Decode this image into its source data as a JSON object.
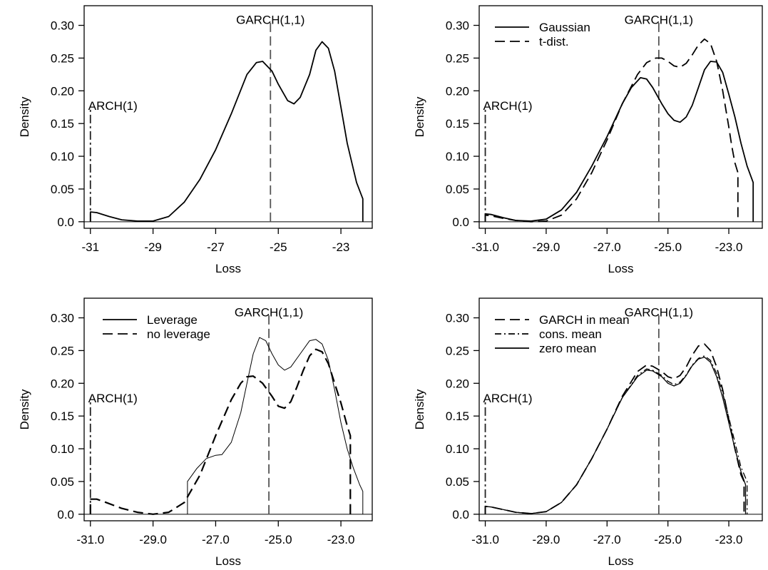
{
  "chart_data": [
    {
      "type": "line",
      "xlabel": "Loss",
      "ylabel": "Density",
      "xlim": [
        -31.2,
        -22.0
      ],
      "ylim": [
        -0.01,
        0.33
      ],
      "xticks": [
        -31,
        -29,
        -27,
        -25,
        -23
      ],
      "xtick_labels": [
        "-31",
        "-29",
        "-27",
        "-25",
        "-23"
      ],
      "yticks": [
        0.0,
        0.05,
        0.1,
        0.15,
        0.2,
        0.25,
        0.3
      ],
      "ytick_labels": [
        "0.0",
        "0.05",
        "0.10",
        "0.15",
        "0.20",
        "0.25",
        "0.30"
      ],
      "vlines": [
        {
          "label": "ARCH(1)",
          "x": -31.0,
          "ymax": 0.175
        },
        {
          "label": "GARCH(1,1)",
          "x": -25.25,
          "ymax": 0.31
        }
      ],
      "legend": [],
      "series": [
        {
          "style": "solid",
          "width": 1.8,
          "x": [
            -31.0,
            -31.0,
            -30.8,
            -30.4,
            -30.0,
            -29.5,
            -29.0,
            -28.5,
            -28.0,
            -27.5,
            -27.0,
            -26.5,
            -26.0,
            -25.7,
            -25.5,
            -25.2,
            -25.0,
            -24.7,
            -24.5,
            -24.3,
            -24.0,
            -23.8,
            -23.6,
            -23.4,
            -23.2,
            -23.0,
            -22.8,
            -22.5,
            -22.3,
            -22.3
          ],
          "y": [
            0.0,
            0.015,
            0.014,
            0.008,
            0.003,
            0.001,
            0.001,
            0.008,
            0.03,
            0.065,
            0.11,
            0.165,
            0.225,
            0.243,
            0.245,
            0.23,
            0.21,
            0.185,
            0.18,
            0.19,
            0.225,
            0.262,
            0.275,
            0.265,
            0.23,
            0.175,
            0.12,
            0.06,
            0.035,
            0.0
          ]
        }
      ]
    },
    {
      "type": "line",
      "xlabel": "Loss",
      "ylabel": "Density",
      "xlim": [
        -31.2,
        -21.9
      ],
      "ylim": [
        -0.01,
        0.33
      ],
      "xticks": [
        -31,
        -29,
        -27,
        -25,
        -23
      ],
      "xtick_labels": [
        "-31.0",
        "-29.0",
        "-27.0",
        "-25.0",
        "-23.0"
      ],
      "yticks": [
        0.0,
        0.05,
        0.1,
        0.15,
        0.2,
        0.25,
        0.3
      ],
      "ytick_labels": [
        "0.0",
        "0.05",
        "0.10",
        "0.15",
        "0.20",
        "0.25",
        "0.30"
      ],
      "vlines": [
        {
          "label": "ARCH(1)",
          "x": -31.0,
          "ymax": 0.175
        },
        {
          "label": "GARCH(1,1)",
          "x": -25.3,
          "ymax": 0.31
        }
      ],
      "legend": [
        {
          "label": "Gaussian",
          "style": "solid"
        },
        {
          "label": "t-dist.",
          "style": "dashed"
        }
      ],
      "series": [
        {
          "name": "Gaussian",
          "style": "solid",
          "width": 1.8,
          "x": [
            -31.0,
            -31.0,
            -30.8,
            -30.4,
            -30.0,
            -29.5,
            -29.0,
            -28.5,
            -28.0,
            -27.5,
            -27.0,
            -26.5,
            -26.2,
            -25.9,
            -25.7,
            -25.5,
            -25.2,
            -25.0,
            -24.8,
            -24.6,
            -24.4,
            -24.2,
            -24.0,
            -23.8,
            -23.6,
            -23.4,
            -23.2,
            -23.0,
            -22.8,
            -22.6,
            -22.4,
            -22.2,
            -22.2
          ],
          "y": [
            0.0,
            0.012,
            0.011,
            0.006,
            0.002,
            0.001,
            0.004,
            0.018,
            0.045,
            0.085,
            0.13,
            0.18,
            0.205,
            0.22,
            0.218,
            0.205,
            0.18,
            0.165,
            0.155,
            0.152,
            0.16,
            0.178,
            0.205,
            0.232,
            0.245,
            0.244,
            0.228,
            0.195,
            0.16,
            0.12,
            0.085,
            0.06,
            0.0
          ]
        },
        {
          "name": "t-dist.",
          "style": "dashed",
          "width": 1.8,
          "x": [
            -31.0,
            -31.0,
            -30.8,
            -30.4,
            -30.0,
            -29.5,
            -29.0,
            -28.5,
            -28.0,
            -27.5,
            -27.0,
            -26.5,
            -26.0,
            -25.7,
            -25.4,
            -25.2,
            -25.0,
            -24.8,
            -24.6,
            -24.4,
            -24.2,
            -24.0,
            -23.8,
            -23.6,
            -23.4,
            -23.2,
            -23.0,
            -22.9,
            -22.8,
            -22.7,
            -22.7
          ],
          "y": [
            0.0,
            0.01,
            0.009,
            0.005,
            0.002,
            0.0,
            0.001,
            0.01,
            0.035,
            0.075,
            0.125,
            0.18,
            0.225,
            0.243,
            0.25,
            0.25,
            0.245,
            0.238,
            0.236,
            0.242,
            0.255,
            0.27,
            0.279,
            0.272,
            0.245,
            0.2,
            0.145,
            0.115,
            0.09,
            0.075,
            0.0
          ]
        }
      ]
    },
    {
      "type": "line",
      "xlabel": "Loss",
      "ylabel": "Density",
      "xlim": [
        -31.2,
        -22.0
      ],
      "ylim": [
        -0.01,
        0.33
      ],
      "xticks": [
        -31,
        -29,
        -27,
        -25,
        -23
      ],
      "xtick_labels": [
        "-31.0",
        "-29.0",
        "-27.0",
        "-25.0",
        "-23.0"
      ],
      "yticks": [
        0.0,
        0.05,
        0.1,
        0.15,
        0.2,
        0.25,
        0.3
      ],
      "ytick_labels": [
        "0.0",
        "0.05",
        "0.10",
        "0.15",
        "0.20",
        "0.25",
        "0.30"
      ],
      "vlines": [
        {
          "label": "ARCH(1)",
          "x": -31.0,
          "ymax": 0.175
        },
        {
          "label": "GARCH(1,1)",
          "x": -25.3,
          "ymax": 0.31
        }
      ],
      "legend": [
        {
          "label": "Leverage",
          "style": "solid"
        },
        {
          "label": "no leverage",
          "style": "dashed"
        }
      ],
      "series": [
        {
          "name": "Leverage",
          "style": "solid",
          "width": 1.0,
          "x": [
            -27.9,
            -27.9,
            -27.6,
            -27.3,
            -27.0,
            -26.8,
            -26.5,
            -26.2,
            -26.0,
            -25.8,
            -25.6,
            -25.4,
            -25.2,
            -25.0,
            -24.8,
            -24.6,
            -24.3,
            -24.0,
            -23.8,
            -23.6,
            -23.4,
            -23.2,
            -23.0,
            -22.8,
            -22.6,
            -22.4,
            -22.3,
            -22.3
          ],
          "y": [
            0.0,
            0.05,
            0.07,
            0.085,
            0.09,
            0.091,
            0.11,
            0.155,
            0.2,
            0.245,
            0.27,
            0.265,
            0.245,
            0.228,
            0.22,
            0.225,
            0.245,
            0.265,
            0.267,
            0.26,
            0.235,
            0.19,
            0.14,
            0.1,
            0.07,
            0.045,
            0.035,
            0.0
          ]
        },
        {
          "name": "no leverage",
          "style": "dashed",
          "width": 2.2,
          "x": [
            -31.0,
            -31.0,
            -30.8,
            -30.5,
            -30.0,
            -29.5,
            -29.0,
            -28.5,
            -28.0,
            -27.5,
            -27.0,
            -26.5,
            -26.2,
            -26.0,
            -25.8,
            -25.5,
            -25.2,
            -25.0,
            -24.8,
            -24.6,
            -24.4,
            -24.2,
            -24.0,
            -23.8,
            -23.6,
            -23.4,
            -23.2,
            -23.0,
            -22.8,
            -22.7,
            -22.7
          ],
          "y": [
            0.0,
            0.023,
            0.023,
            0.018,
            0.009,
            0.003,
            0.0,
            0.003,
            0.018,
            0.06,
            0.12,
            0.175,
            0.2,
            0.21,
            0.211,
            0.2,
            0.18,
            0.165,
            0.162,
            0.172,
            0.195,
            0.22,
            0.242,
            0.252,
            0.248,
            0.23,
            0.2,
            0.17,
            0.135,
            0.12,
            0.0
          ]
        }
      ]
    },
    {
      "type": "line",
      "xlabel": "Loss",
      "ylabel": "Density",
      "xlim": [
        -31.2,
        -21.9
      ],
      "ylim": [
        -0.01,
        0.33
      ],
      "xticks": [
        -31,
        -29,
        -27,
        -25,
        -23
      ],
      "xtick_labels": [
        "-31.0",
        "-29.0",
        "-27.0",
        "-25.0",
        "-23.0"
      ],
      "yticks": [
        0.0,
        0.05,
        0.1,
        0.15,
        0.2,
        0.25,
        0.3
      ],
      "ytick_labels": [
        "0.0",
        "0.05",
        "0.10",
        "0.15",
        "0.20",
        "0.25",
        "0.30"
      ],
      "vlines": [
        {
          "label": "ARCH(1)",
          "x": -31.0,
          "ymax": 0.175
        },
        {
          "label": "GARCH(1,1)",
          "x": -25.3,
          "ymax": 0.31
        }
      ],
      "legend": [
        {
          "label": "GARCH in mean",
          "style": "dashed"
        },
        {
          "label": "cons. mean",
          "style": "dashdot"
        },
        {
          "label": "zero mean",
          "style": "solid"
        }
      ],
      "series": [
        {
          "name": "GARCH in mean",
          "style": "dashed",
          "width": 1.8,
          "x": [
            -31.0,
            -31.0,
            -30.8,
            -30.4,
            -30.0,
            -29.5,
            -29.0,
            -28.5,
            -28.0,
            -27.5,
            -27.0,
            -26.5,
            -26.0,
            -25.7,
            -25.5,
            -25.2,
            -25.0,
            -24.8,
            -24.6,
            -24.4,
            -24.2,
            -24.0,
            -23.8,
            -23.6,
            -23.4,
            -23.2,
            -23.0,
            -22.8,
            -22.6,
            -22.5,
            -22.5
          ],
          "y": [
            0.0,
            0.012,
            0.011,
            0.007,
            0.003,
            0.001,
            0.004,
            0.018,
            0.045,
            0.085,
            0.13,
            0.18,
            0.218,
            0.228,
            0.226,
            0.218,
            0.21,
            0.207,
            0.212,
            0.225,
            0.243,
            0.257,
            0.26,
            0.25,
            0.225,
            0.19,
            0.145,
            0.1,
            0.06,
            0.05,
            0.0
          ]
        },
        {
          "name": "cons. mean",
          "style": "dashdot",
          "width": 1.3,
          "x": [
            -31.0,
            -31.0,
            -30.8,
            -30.4,
            -30.0,
            -29.5,
            -29.0,
            -28.5,
            -28.0,
            -27.5,
            -27.0,
            -26.5,
            -26.0,
            -25.7,
            -25.5,
            -25.2,
            -25.0,
            -24.8,
            -24.6,
            -24.4,
            -24.2,
            -24.0,
            -23.8,
            -23.6,
            -23.4,
            -23.2,
            -23.0,
            -22.8,
            -22.6,
            -22.4,
            -22.4
          ],
          "y": [
            0.0,
            0.012,
            0.011,
            0.007,
            0.003,
            0.001,
            0.004,
            0.018,
            0.045,
            0.085,
            0.13,
            0.178,
            0.212,
            0.222,
            0.22,
            0.212,
            0.203,
            0.198,
            0.202,
            0.213,
            0.228,
            0.238,
            0.242,
            0.235,
            0.215,
            0.185,
            0.148,
            0.11,
            0.072,
            0.05,
            0.0
          ]
        },
        {
          "name": "zero mean",
          "style": "solid",
          "width": 1.3,
          "x": [
            -31.0,
            -31.0,
            -30.8,
            -30.4,
            -30.0,
            -29.5,
            -29.0,
            -28.5,
            -28.0,
            -27.5,
            -27.0,
            -26.5,
            -26.0,
            -25.7,
            -25.5,
            -25.2,
            -25.0,
            -24.8,
            -24.6,
            -24.4,
            -24.2,
            -24.0,
            -23.8,
            -23.6,
            -23.4,
            -23.2,
            -23.0,
            -22.8,
            -22.6,
            -22.45,
            -22.45
          ],
          "y": [
            0.0,
            0.012,
            0.011,
            0.007,
            0.003,
            0.001,
            0.004,
            0.018,
            0.045,
            0.085,
            0.13,
            0.178,
            0.21,
            0.22,
            0.219,
            0.21,
            0.2,
            0.196,
            0.2,
            0.212,
            0.227,
            0.237,
            0.24,
            0.232,
            0.21,
            0.178,
            0.14,
            0.1,
            0.065,
            0.045,
            0.0
          ]
        }
      ]
    }
  ]
}
